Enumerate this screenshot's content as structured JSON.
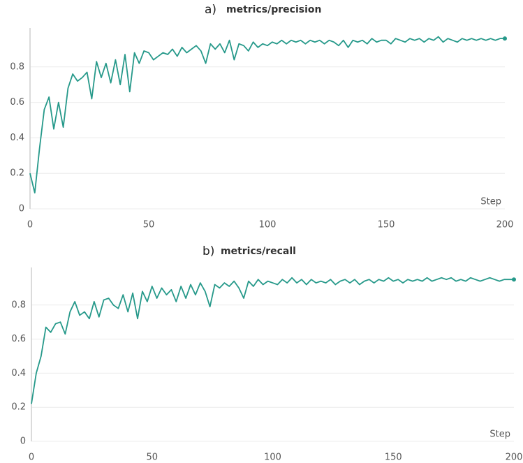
{
  "chart_data": [
    {
      "type": "line",
      "panel_label": "a)",
      "title": "metrics/precision",
      "x_label": "Step",
      "color": "#26998a",
      "grid": true,
      "xlim": [
        0,
        200
      ],
      "ylim": [
        0,
        1
      ],
      "xticks": [
        0,
        50,
        100,
        150,
        200
      ],
      "yticks": [
        0,
        0.2,
        0.4,
        0.6,
        0.8
      ],
      "x": [
        0,
        2,
        4,
        6,
        8,
        10,
        12,
        14,
        16,
        18,
        20,
        22,
        24,
        26,
        28,
        30,
        32,
        34,
        36,
        38,
        40,
        42,
        44,
        46,
        48,
        50,
        52,
        54,
        56,
        58,
        60,
        62,
        64,
        66,
        68,
        70,
        72,
        74,
        76,
        78,
        80,
        82,
        84,
        86,
        88,
        90,
        92,
        94,
        96,
        98,
        100,
        102,
        104,
        106,
        108,
        110,
        112,
        114,
        116,
        118,
        120,
        122,
        124,
        126,
        128,
        130,
        132,
        134,
        136,
        138,
        140,
        142,
        144,
        146,
        148,
        150,
        152,
        154,
        156,
        158,
        160,
        162,
        164,
        166,
        168,
        170,
        172,
        174,
        176,
        178,
        180,
        182,
        184,
        186,
        188,
        190,
        192,
        194,
        196,
        198,
        200
      ],
      "values": [
        0.2,
        0.09,
        0.34,
        0.56,
        0.63,
        0.45,
        0.6,
        0.46,
        0.68,
        0.76,
        0.72,
        0.74,
        0.77,
        0.62,
        0.83,
        0.74,
        0.82,
        0.71,
        0.84,
        0.7,
        0.87,
        0.66,
        0.88,
        0.82,
        0.89,
        0.88,
        0.84,
        0.86,
        0.88,
        0.87,
        0.9,
        0.86,
        0.91,
        0.88,
        0.9,
        0.92,
        0.89,
        0.82,
        0.93,
        0.9,
        0.93,
        0.88,
        0.95,
        0.84,
        0.93,
        0.92,
        0.89,
        0.94,
        0.91,
        0.93,
        0.92,
        0.94,
        0.93,
        0.95,
        0.93,
        0.95,
        0.94,
        0.95,
        0.93,
        0.95,
        0.94,
        0.95,
        0.93,
        0.95,
        0.94,
        0.92,
        0.95,
        0.91,
        0.95,
        0.94,
        0.95,
        0.93,
        0.96,
        0.94,
        0.95,
        0.95,
        0.93,
        0.96,
        0.95,
        0.94,
        0.96,
        0.95,
        0.96,
        0.94,
        0.96,
        0.95,
        0.97,
        0.94,
        0.96,
        0.95,
        0.94,
        0.96,
        0.95,
        0.96,
        0.95,
        0.96,
        0.95,
        0.96,
        0.95,
        0.96,
        0.96
      ]
    },
    {
      "type": "line",
      "panel_label": "b)",
      "title": "metrics/recall",
      "x_label": "Step",
      "color": "#26998a",
      "grid": true,
      "xlim": [
        0,
        200
      ],
      "ylim": [
        0,
        1
      ],
      "xticks": [
        0,
        50,
        100,
        150,
        200
      ],
      "yticks": [
        0,
        0.2,
        0.4,
        0.6,
        0.8
      ],
      "x": [
        0,
        2,
        4,
        6,
        8,
        10,
        12,
        14,
        16,
        18,
        20,
        22,
        24,
        26,
        28,
        30,
        32,
        34,
        36,
        38,
        40,
        42,
        44,
        46,
        48,
        50,
        52,
        54,
        56,
        58,
        60,
        62,
        64,
        66,
        68,
        70,
        72,
        74,
        76,
        78,
        80,
        82,
        84,
        86,
        88,
        90,
        92,
        94,
        96,
        98,
        100,
        102,
        104,
        106,
        108,
        110,
        112,
        114,
        116,
        118,
        120,
        122,
        124,
        126,
        128,
        130,
        132,
        134,
        136,
        138,
        140,
        142,
        144,
        146,
        148,
        150,
        152,
        154,
        156,
        158,
        160,
        162,
        164,
        166,
        168,
        170,
        172,
        174,
        176,
        178,
        180,
        182,
        184,
        186,
        188,
        190,
        192,
        194,
        196,
        198,
        200
      ],
      "values": [
        0.22,
        0.4,
        0.5,
        0.67,
        0.64,
        0.69,
        0.7,
        0.63,
        0.76,
        0.82,
        0.74,
        0.76,
        0.72,
        0.82,
        0.73,
        0.83,
        0.84,
        0.8,
        0.78,
        0.86,
        0.76,
        0.87,
        0.72,
        0.88,
        0.82,
        0.91,
        0.84,
        0.9,
        0.86,
        0.89,
        0.82,
        0.91,
        0.84,
        0.92,
        0.86,
        0.93,
        0.88,
        0.79,
        0.92,
        0.9,
        0.93,
        0.91,
        0.94,
        0.9,
        0.84,
        0.94,
        0.91,
        0.95,
        0.92,
        0.94,
        0.93,
        0.92,
        0.95,
        0.93,
        0.96,
        0.93,
        0.95,
        0.92,
        0.95,
        0.93,
        0.94,
        0.93,
        0.95,
        0.92,
        0.94,
        0.95,
        0.93,
        0.95,
        0.92,
        0.94,
        0.95,
        0.93,
        0.95,
        0.94,
        0.96,
        0.94,
        0.95,
        0.93,
        0.95,
        0.94,
        0.95,
        0.94,
        0.96,
        0.94,
        0.95,
        0.96,
        0.95,
        0.96,
        0.94,
        0.95,
        0.94,
        0.96,
        0.95,
        0.94,
        0.95,
        0.96,
        0.95,
        0.94,
        0.95,
        0.95,
        0.95
      ]
    }
  ]
}
